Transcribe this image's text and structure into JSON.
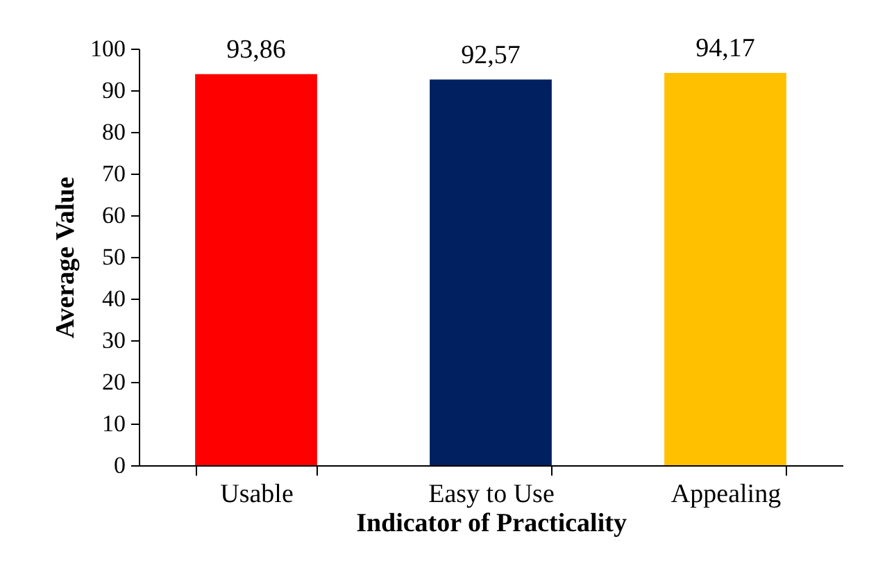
{
  "chart_data": {
    "type": "bar",
    "xlabel": "Indicator of Practicality",
    "ylabel": "Average Value",
    "categories": [
      "Usable",
      "Easy to Use",
      "Appealing"
    ],
    "values": [
      93.86,
      92.57,
      94.17
    ],
    "colors": [
      "#ff0000",
      "#002060",
      "#ffc000"
    ],
    "value_labels": [
      "93,86",
      "92,57",
      "94,17"
    ],
    "ylim": [
      0,
      100
    ],
    "yticks": [
      0,
      10,
      20,
      30,
      40,
      50,
      60,
      70,
      80,
      90,
      100
    ]
  }
}
